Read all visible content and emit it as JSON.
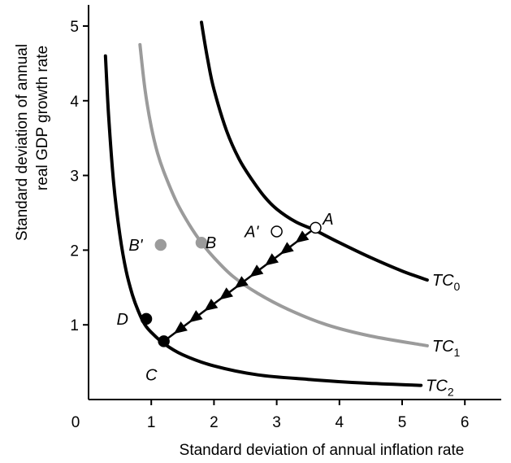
{
  "chart_data": {
    "type": "line",
    "title": "",
    "xlabel": "Standard deviation of annual inflation rate",
    "ylabel_line1": "Standard deviation of annual",
    "ylabel_line2": "real GDP growth rate",
    "xlim": [
      0,
      6.5
    ],
    "ylim": [
      0,
      5.3
    ],
    "x_ticks": [
      0,
      1,
      2,
      3,
      4,
      5,
      6
    ],
    "y_ticks": [
      1,
      2,
      3,
      4,
      5
    ],
    "grid": false,
    "colors": {
      "black": "#000000",
      "gray": "#9b9b9b"
    },
    "series": [
      {
        "name": "TC",
        "subscript": "0",
        "color": "#000000",
        "x": [
          1.8,
          1.9,
          2.0,
          2.2,
          2.4,
          2.6,
          2.8,
          3.0,
          3.3,
          3.6,
          4.0,
          4.5,
          5.0,
          5.4
        ],
        "y": [
          5.05,
          4.55,
          4.15,
          3.6,
          3.22,
          2.95,
          2.72,
          2.55,
          2.38,
          2.27,
          2.1,
          1.9,
          1.72,
          1.6
        ]
      },
      {
        "name": "TC",
        "subscript": "1",
        "color": "#9b9b9b",
        "x": [
          0.82,
          0.9,
          1.0,
          1.1,
          1.2,
          1.4,
          1.6,
          1.8,
          2.0,
          2.3,
          2.7,
          3.2,
          3.8,
          4.5,
          5.4
        ],
        "y": [
          4.75,
          4.15,
          3.65,
          3.3,
          3.05,
          2.65,
          2.35,
          2.1,
          1.9,
          1.65,
          1.42,
          1.2,
          1.0,
          0.85,
          0.72
        ]
      },
      {
        "name": "TC",
        "subscript": "2",
        "color": "#000000",
        "x": [
          0.27,
          0.32,
          0.4,
          0.5,
          0.6,
          0.7,
          0.8,
          0.9,
          1.0,
          1.2,
          1.5,
          2.0,
          2.7,
          3.5,
          4.4,
          5.3
        ],
        "y": [
          4.6,
          3.8,
          2.9,
          2.2,
          1.72,
          1.4,
          1.17,
          1.0,
          0.9,
          0.75,
          0.6,
          0.45,
          0.33,
          0.27,
          0.22,
          0.19
        ]
      }
    ],
    "points": [
      {
        "label": "A",
        "x": 3.62,
        "y": 2.3,
        "fill": "#ffffff",
        "stroke": "#000000",
        "label_dx": 0.2,
        "label_dy": 0.12
      },
      {
        "label": "A'",
        "x": 3.0,
        "y": 2.25,
        "fill": "#ffffff",
        "stroke": "#000000",
        "label_dx": -0.4,
        "label_dy": 0.0
      },
      {
        "label": "B",
        "x": 1.8,
        "y": 2.1,
        "fill": "#9b9b9b",
        "stroke": "#9b9b9b",
        "label_dx": 0.15,
        "label_dy": 0.0
      },
      {
        "label": "B'",
        "x": 1.15,
        "y": 2.07,
        "fill": "#9b9b9b",
        "stroke": "#9b9b9b",
        "label_dx": -0.4,
        "label_dy": 0.0
      },
      {
        "label": "C",
        "x": 1.2,
        "y": 0.78,
        "fill": "#000000",
        "stroke": "#000000",
        "label_dx": -0.2,
        "label_dy": -0.45
      },
      {
        "label": "D",
        "x": 0.92,
        "y": 1.08,
        "fill": "#000000",
        "stroke": "#000000",
        "label_dx": -0.38,
        "label_dy": 0.0
      }
    ],
    "movement": {
      "from": [
        3.62,
        2.3
      ],
      "to": [
        1.2,
        0.78
      ],
      "arrow_count": 9
    }
  }
}
